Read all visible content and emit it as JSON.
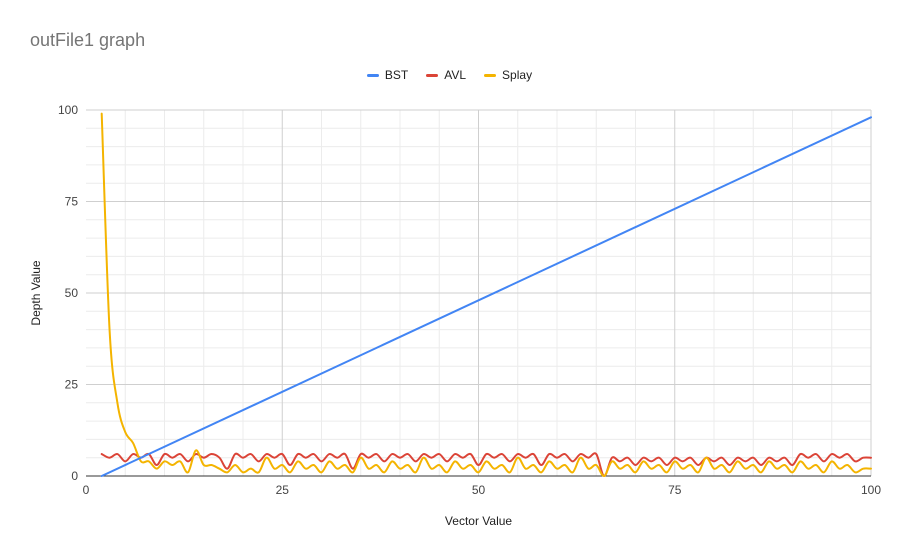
{
  "chart_data": {
    "type": "line",
    "title": "outFile1 graph",
    "xlabel": "Vector Value",
    "ylabel": "Depth Value",
    "xlim": [
      0,
      100
    ],
    "ylim": [
      0,
      100
    ],
    "x_ticks": [
      "0",
      "25",
      "50",
      "75",
      "100"
    ],
    "y_ticks": [
      "0",
      "25",
      "50",
      "75",
      "100"
    ],
    "grid": true,
    "legend_position": "top",
    "series": [
      {
        "name": "BST",
        "color": "#4285f4",
        "x": [
          2,
          100
        ],
        "values": [
          0,
          98
        ]
      },
      {
        "name": "AVL",
        "color": "#db4437",
        "x": [
          2,
          3,
          4,
          5,
          6,
          7,
          8,
          9,
          10,
          11,
          12,
          13,
          14,
          15,
          16,
          17,
          18,
          19,
          20,
          21,
          22,
          23,
          24,
          25,
          26,
          27,
          28,
          29,
          30,
          31,
          32,
          33,
          34,
          35,
          36,
          37,
          38,
          39,
          40,
          41,
          42,
          43,
          44,
          45,
          46,
          47,
          48,
          49,
          50,
          51,
          52,
          53,
          54,
          55,
          56,
          57,
          58,
          59,
          60,
          61,
          62,
          63,
          64,
          65,
          66,
          67,
          68,
          69,
          70,
          71,
          72,
          73,
          74,
          75,
          76,
          77,
          78,
          79,
          80,
          81,
          82,
          83,
          84,
          85,
          86,
          87,
          88,
          89,
          90,
          91,
          92,
          93,
          94,
          95,
          96,
          97,
          98,
          99,
          100
        ],
        "values": [
          6,
          5,
          6,
          4,
          6,
          5,
          6,
          3,
          6,
          5,
          6,
          4,
          6,
          5,
          6,
          5,
          2,
          6,
          5,
          6,
          4,
          6,
          5,
          6,
          3,
          6,
          5,
          6,
          4,
          6,
          5,
          6,
          2,
          6,
          5,
          6,
          4,
          6,
          5,
          6,
          4,
          6,
          5,
          6,
          4,
          6,
          5,
          6,
          3,
          6,
          5,
          6,
          4,
          6,
          5,
          6,
          3,
          6,
          5,
          6,
          4,
          6,
          5,
          6,
          0,
          5,
          4,
          5,
          3,
          5,
          4,
          5,
          3,
          5,
          4,
          5,
          3,
          5,
          4,
          5,
          3,
          5,
          4,
          5,
          3,
          5,
          4,
          5,
          3,
          6,
          5,
          6,
          4,
          6,
          5,
          6,
          4,
          5,
          5
        ]
      },
      {
        "name": "Splay",
        "color": "#f4b400",
        "x": [
          2,
          3,
          4,
          5,
          6,
          7,
          8,
          9,
          10,
          11,
          12,
          13,
          14,
          15,
          16,
          17,
          18,
          19,
          20,
          21,
          22,
          23,
          24,
          25,
          26,
          27,
          28,
          29,
          30,
          31,
          32,
          33,
          34,
          35,
          36,
          37,
          38,
          39,
          40,
          41,
          42,
          43,
          44,
          45,
          46,
          47,
          48,
          49,
          50,
          51,
          52,
          53,
          54,
          55,
          56,
          57,
          58,
          59,
          60,
          61,
          62,
          63,
          64,
          65,
          66,
          67,
          68,
          69,
          70,
          71,
          72,
          73,
          74,
          75,
          76,
          77,
          78,
          79,
          80,
          81,
          82,
          83,
          84,
          85,
          86,
          87,
          88,
          89,
          90,
          91,
          92,
          93,
          94,
          95,
          96,
          97,
          98,
          99,
          100
        ],
        "values": [
          99,
          40,
          20,
          12,
          9,
          4,
          4,
          2,
          4,
          3,
          4,
          1,
          7,
          3,
          3,
          2,
          1,
          3,
          1,
          2,
          1,
          5,
          2,
          3,
          1,
          4,
          2,
          3,
          1,
          4,
          2,
          3,
          1,
          5,
          2,
          3,
          1,
          4,
          2,
          3,
          1,
          5,
          2,
          3,
          1,
          4,
          2,
          3,
          1,
          4,
          2,
          3,
          1,
          5,
          2,
          3,
          1,
          4,
          2,
          3,
          1,
          5,
          2,
          3,
          0,
          4,
          2,
          3,
          1,
          4,
          2,
          3,
          1,
          4,
          2,
          3,
          1,
          5,
          2,
          3,
          1,
          4,
          2,
          3,
          1,
          4,
          2,
          3,
          1,
          4,
          2,
          3,
          1,
          4,
          2,
          3,
          1,
          2,
          2
        ]
      }
    ]
  }
}
